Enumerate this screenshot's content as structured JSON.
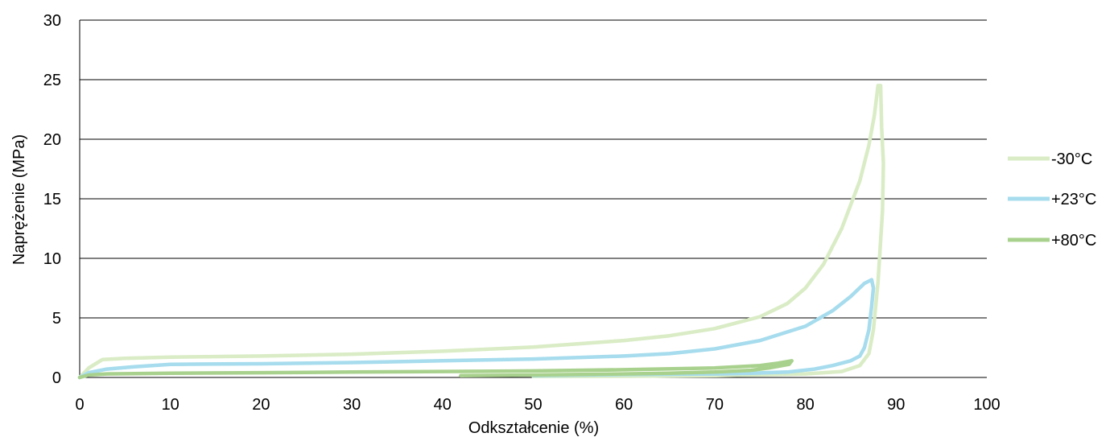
{
  "chart_data": {
    "type": "line",
    "title": "",
    "xlabel": "Odkształcenie (%)",
    "ylabel": "Naprężenie (MPa)",
    "xlim": [
      0,
      100
    ],
    "ylim": [
      0,
      30
    ],
    "x_ticks": [
      0,
      10,
      20,
      30,
      40,
      50,
      60,
      70,
      80,
      90,
      100
    ],
    "y_ticks": [
      0,
      5,
      10,
      15,
      20,
      25,
      30
    ],
    "grid": "horizontal",
    "legend_position": "right",
    "series": [
      {
        "name": "-30°C",
        "color": "#d9ecc5",
        "points": [
          [
            0,
            0
          ],
          [
            1,
            0.8
          ],
          [
            2.5,
            1.5
          ],
          [
            5,
            1.6
          ],
          [
            10,
            1.7
          ],
          [
            20,
            1.8
          ],
          [
            30,
            1.95
          ],
          [
            40,
            2.2
          ],
          [
            50,
            2.55
          ],
          [
            60,
            3.1
          ],
          [
            65,
            3.5
          ],
          [
            70,
            4.1
          ],
          [
            75,
            5.1
          ],
          [
            78,
            6.2
          ],
          [
            80,
            7.5
          ],
          [
            82,
            9.5
          ],
          [
            84,
            12.5
          ],
          [
            86,
            16.5
          ],
          [
            87,
            19.5
          ],
          [
            87.6,
            22
          ],
          [
            88,
            24.5
          ],
          [
            88.3,
            24.5
          ],
          [
            88.4,
            21
          ],
          [
            88.6,
            18
          ],
          [
            88.5,
            14
          ],
          [
            88,
            8
          ],
          [
            87.5,
            4
          ],
          [
            87,
            2
          ],
          [
            86,
            1
          ],
          [
            84,
            0.5
          ],
          [
            80,
            0.3
          ],
          [
            70,
            0.15
          ],
          [
            60,
            0.1
          ],
          [
            50,
            0.08
          ]
        ]
      },
      {
        "name": "+23°C",
        "color": "#a6dced",
        "points": [
          [
            0,
            0
          ],
          [
            1,
            0.4
          ],
          [
            3,
            0.7
          ],
          [
            6,
            0.9
          ],
          [
            10,
            1.1
          ],
          [
            20,
            1.15
          ],
          [
            30,
            1.25
          ],
          [
            40,
            1.4
          ],
          [
            50,
            1.55
          ],
          [
            60,
            1.8
          ],
          [
            65,
            2.0
          ],
          [
            70,
            2.4
          ],
          [
            75,
            3.1
          ],
          [
            80,
            4.3
          ],
          [
            83,
            5.6
          ],
          [
            85,
            6.8
          ],
          [
            86.5,
            7.9
          ],
          [
            87.3,
            8.2
          ],
          [
            87.5,
            7.5
          ],
          [
            87.3,
            6
          ],
          [
            87,
            4
          ],
          [
            86.5,
            2.5
          ],
          [
            86,
            1.8
          ],
          [
            85,
            1.4
          ],
          [
            83,
            1
          ],
          [
            81,
            0.7
          ],
          [
            78,
            0.45
          ],
          [
            74,
            0.35
          ],
          [
            70,
            0.3
          ],
          [
            60,
            0.25
          ],
          [
            55,
            0.2
          ],
          [
            50,
            0.15
          ]
        ]
      },
      {
        "name": "+80°C",
        "color": "#a9d18e",
        "points": [
          [
            0,
            0
          ],
          [
            1,
            0.2
          ],
          [
            3,
            0.3
          ],
          [
            10,
            0.35
          ],
          [
            20,
            0.4
          ],
          [
            30,
            0.45
          ],
          [
            40,
            0.5
          ],
          [
            50,
            0.55
          ],
          [
            60,
            0.65
          ],
          [
            70,
            0.8
          ],
          [
            75,
            1.0
          ],
          [
            77,
            1.2
          ],
          [
            78.5,
            1.4
          ],
          [
            78.2,
            1.1
          ],
          [
            76,
            0.8
          ],
          [
            74,
            0.6
          ],
          [
            70,
            0.45
          ],
          [
            65,
            0.35
          ],
          [
            60,
            0.3
          ],
          [
            50,
            0.2
          ],
          [
            42,
            0.15
          ]
        ]
      }
    ]
  }
}
